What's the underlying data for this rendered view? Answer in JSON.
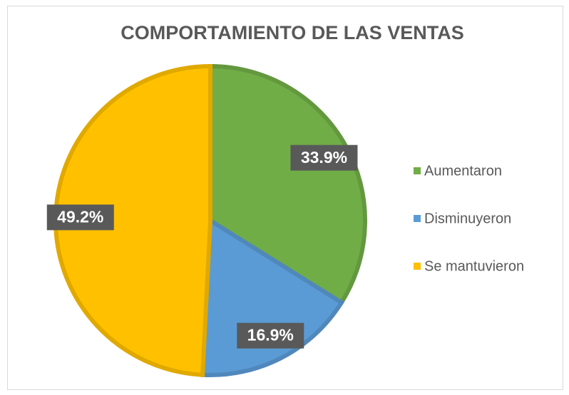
{
  "chart_data": {
    "type": "pie",
    "title": "COMPORTAMIENTO DE LAS VENTAS",
    "categories": [
      "Aumentaron",
      "Disminuyeron",
      "Se mantuvieron"
    ],
    "values": [
      33.9,
      16.9,
      49.2
    ],
    "value_labels": [
      "33.9%",
      "16.9%",
      "49.2%"
    ],
    "colors": [
      "#70ad47",
      "#5b9bd5",
      "#ffc000"
    ],
    "legend": "right"
  }
}
